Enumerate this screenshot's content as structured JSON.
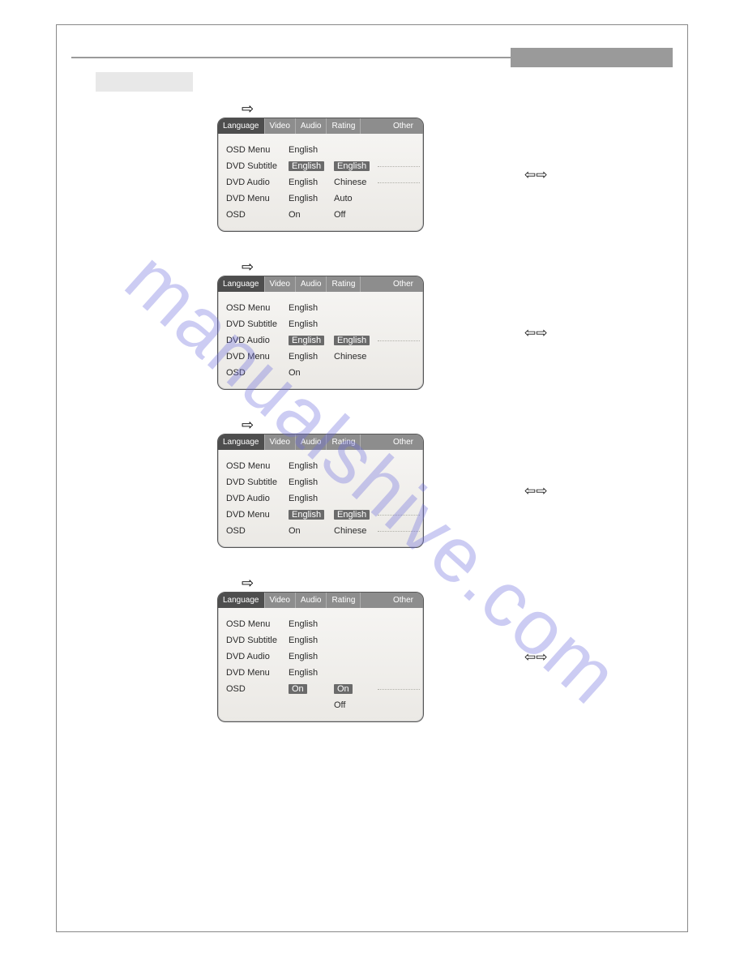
{
  "watermark": "manualshive.com",
  "tabs": [
    "Language",
    "Video",
    "Audio",
    "Rating",
    "Other"
  ],
  "arrows": {
    "right": "⇨",
    "updown": "⇦⇨"
  },
  "panels": [
    {
      "rows": [
        {
          "label": "OSD Menu",
          "value": "English",
          "valueSel": false,
          "opts": []
        },
        {
          "label": "DVD Subtitle",
          "value": "English",
          "valueSel": true,
          "opts": [
            {
              "t": "English",
              "sel": true
            }
          ],
          "tail": true
        },
        {
          "label": "DVD Audio",
          "value": "English",
          "valueSel": false,
          "opts": [
            {
              "t": "Chinese",
              "sel": false
            }
          ],
          "tail": true
        },
        {
          "label": "DVD Menu",
          "value": "English",
          "valueSel": false,
          "opts": [
            {
              "t": "Auto",
              "sel": false
            }
          ]
        },
        {
          "label": "OSD",
          "value": "On",
          "valueSel": false,
          "opts": [
            {
              "t": "Off",
              "sel": false
            }
          ]
        }
      ]
    },
    {
      "rows": [
        {
          "label": "OSD Menu",
          "value": "English",
          "valueSel": false,
          "opts": []
        },
        {
          "label": "DVD Subtitle",
          "value": "English",
          "valueSel": false,
          "opts": []
        },
        {
          "label": "DVD Audio",
          "value": "English",
          "valueSel": true,
          "opts": [
            {
              "t": "English",
              "sel": true
            }
          ],
          "tail": true
        },
        {
          "label": "DVD Menu",
          "value": "English",
          "valueSel": false,
          "opts": [
            {
              "t": "Chinese",
              "sel": false
            }
          ]
        },
        {
          "label": "OSD",
          "value": "On",
          "valueSel": false,
          "opts": []
        }
      ]
    },
    {
      "rows": [
        {
          "label": "OSD Menu",
          "value": "English",
          "valueSel": false,
          "opts": []
        },
        {
          "label": "DVD Subtitle",
          "value": "English",
          "valueSel": false,
          "opts": []
        },
        {
          "label": "DVD Audio",
          "value": "English",
          "valueSel": false,
          "opts": []
        },
        {
          "label": "DVD Menu",
          "value": "English",
          "valueSel": true,
          "opts": [
            {
              "t": "English",
              "sel": true
            }
          ],
          "tail": true
        },
        {
          "label": "OSD",
          "value": "On",
          "valueSel": false,
          "opts": [
            {
              "t": "Chinese",
              "sel": false
            }
          ],
          "tail": true
        }
      ]
    },
    {
      "rows": [
        {
          "label": "OSD Menu",
          "value": "English",
          "valueSel": false,
          "opts": []
        },
        {
          "label": "DVD Subtitle",
          "value": "English",
          "valueSel": false,
          "opts": []
        },
        {
          "label": "DVD Audio",
          "value": "English",
          "valueSel": false,
          "opts": []
        },
        {
          "label": "DVD Menu",
          "value": "English",
          "valueSel": false,
          "opts": []
        },
        {
          "label": "OSD",
          "value": "On",
          "valueSel": true,
          "opts": [
            {
              "t": "On",
              "sel": true
            }
          ],
          "tail": true
        },
        {
          "label": "",
          "value": "",
          "valueSel": false,
          "opts": [
            {
              "t": "Off",
              "sel": false
            }
          ]
        }
      ]
    }
  ]
}
